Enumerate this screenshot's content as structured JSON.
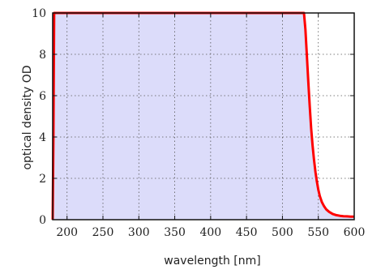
{
  "chart_data": {
    "type": "line",
    "title": "",
    "xlabel": "wavelength [nm]",
    "ylabel": "optical density OD",
    "xlim": [
      180,
      600
    ],
    "ylim": [
      0,
      10
    ],
    "xticks": [
      200,
      250,
      300,
      350,
      400,
      450,
      500,
      550,
      600
    ],
    "yticks": [
      0,
      2,
      4,
      6,
      8,
      10
    ],
    "grid": true,
    "grid_style": "dotted",
    "fill_color": "#dcdcfa",
    "line_color": "#ff0000",
    "series": [
      {
        "x": [
          180,
          181,
          182,
          300,
          400,
          500,
          530,
          532,
          534,
          536,
          538,
          540,
          542,
          544,
          546,
          548,
          550,
          552,
          555,
          558,
          561,
          565,
          570,
          575,
          580,
          585,
          590,
          595,
          600
        ],
        "values": [
          0,
          4,
          10,
          10,
          10,
          10,
          10,
          9.2,
          8.0,
          6.7,
          5.5,
          4.4,
          3.6,
          2.9,
          2.3,
          1.85,
          1.45,
          1.15,
          0.85,
          0.65,
          0.5,
          0.38,
          0.28,
          0.22,
          0.19,
          0.17,
          0.16,
          0.15,
          0.15
        ]
      }
    ]
  }
}
